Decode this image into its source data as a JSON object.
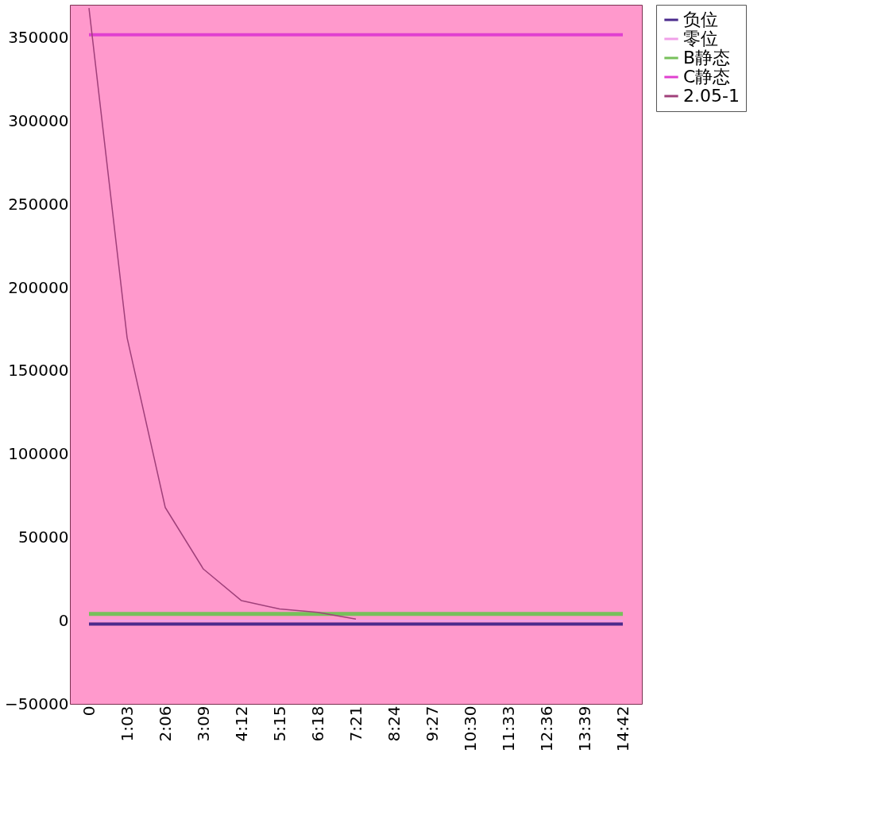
{
  "chart_data": {
    "type": "line",
    "categories": [
      "0",
      "1:03",
      "2:06",
      "3:09",
      "4:12",
      "5:15",
      "6:18",
      "7:21",
      "8:24",
      "9:27",
      "10:30",
      "11:33",
      "12:36",
      "13:39",
      "14:42"
    ],
    "series": [
      {
        "name": "负位",
        "color": "#4b2a8c",
        "values": [
          -2000,
          -2000,
          -2000,
          -2000,
          -2000,
          -2000,
          -2000,
          -2000,
          -2000,
          -2000,
          -2000,
          -2000,
          -2000,
          -2000,
          -2000
        ]
      },
      {
        "name": "零位",
        "color": "#f0a0e8",
        "values": [
          0,
          0,
          0,
          0,
          0,
          0,
          0,
          0,
          0,
          0,
          0,
          0,
          0,
          0,
          0
        ]
      },
      {
        "name": "B静态",
        "color": "#77c05a",
        "values": [
          4000,
          4000,
          4000,
          4000,
          4000,
          4000,
          4000,
          4000,
          4000,
          4000,
          4000,
          4000,
          4000,
          4000,
          4000
        ]
      },
      {
        "name": "C静态",
        "color": "#e040d0",
        "values": [
          352000,
          352000,
          352000,
          352000,
          352000,
          352000,
          352000,
          352000,
          352000,
          352000,
          352000,
          352000,
          352000,
          352000,
          352000
        ]
      },
      {
        "name": "2.05-1",
        "color": "#a0407a",
        "values": [
          368000,
          170000,
          68000,
          31000,
          12000,
          7000,
          5000,
          1000,
          null,
          null,
          null,
          null,
          null,
          null,
          null
        ]
      }
    ],
    "ylim": [
      -50000,
      370000
    ],
    "yticks": [
      -50000,
      0,
      50000,
      100000,
      150000,
      200000,
      250000,
      300000,
      350000
    ],
    "grid": false,
    "legend": "right",
    "marker": "none",
    "line_style": "solid"
  }
}
